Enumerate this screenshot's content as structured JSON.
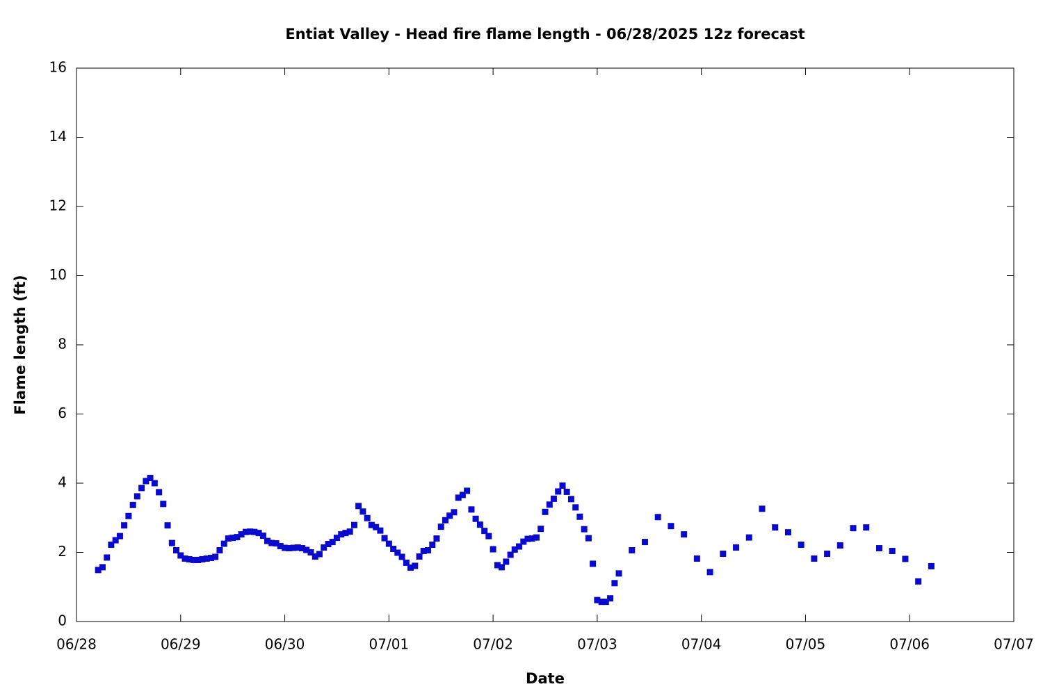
{
  "chart_data": {
    "type": "scatter",
    "title": "Entiat Valley - Head fire flame length - 06/28/2025 12z forecast",
    "xlabel": "Date",
    "ylabel": "Flame length (ft)",
    "xlim": [
      0,
      9
    ],
    "ylim": [
      0,
      16
    ],
    "xticks": [
      {
        "value": 0,
        "label": "06/28"
      },
      {
        "value": 1,
        "label": "06/29"
      },
      {
        "value": 2,
        "label": "06/30"
      },
      {
        "value": 3,
        "label": "07/01"
      },
      {
        "value": 4,
        "label": "07/02"
      },
      {
        "value": 5,
        "label": "07/03"
      },
      {
        "value": 6,
        "label": "07/04"
      },
      {
        "value": 7,
        "label": "07/05"
      },
      {
        "value": 8,
        "label": "07/06"
      },
      {
        "value": 9,
        "label": "07/07"
      }
    ],
    "yticks": [
      0,
      2,
      4,
      6,
      8,
      10,
      12,
      14,
      16
    ],
    "color": "#0a0acc",
    "x": [
      0.208,
      0.25,
      0.292,
      0.333,
      0.375,
      0.417,
      0.458,
      0.5,
      0.542,
      0.583,
      0.625,
      0.667,
      0.708,
      0.75,
      0.792,
      0.833,
      0.875,
      0.917,
      0.958,
      1,
      1.042,
      1.083,
      1.125,
      1.167,
      1.208,
      1.25,
      1.292,
      1.333,
      1.375,
      1.417,
      1.458,
      1.5,
      1.542,
      1.583,
      1.625,
      1.667,
      1.708,
      1.75,
      1.792,
      1.833,
      1.875,
      1.917,
      1.958,
      2,
      2.042,
      2.083,
      2.125,
      2.167,
      2.208,
      2.25,
      2.292,
      2.333,
      2.375,
      2.417,
      2.458,
      2.5,
      2.542,
      2.583,
      2.625,
      2.667,
      2.708,
      2.75,
      2.792,
      2.833,
      2.875,
      2.917,
      2.958,
      3,
      3.042,
      3.083,
      3.125,
      3.167,
      3.208,
      3.25,
      3.292,
      3.333,
      3.375,
      3.417,
      3.458,
      3.5,
      3.542,
      3.583,
      3.625,
      3.667,
      3.708,
      3.75,
      3.792,
      3.833,
      3.875,
      3.917,
      3.958,
      4,
      4.042,
      4.083,
      4.125,
      4.167,
      4.208,
      4.25,
      4.292,
      4.333,
      4.375,
      4.417,
      4.458,
      4.5,
      4.542,
      4.583,
      4.625,
      4.667,
      4.708,
      4.75,
      4.792,
      4.833,
      4.875,
      4.917,
      4.958,
      5,
      5.042,
      5.083,
      5.125,
      5.167,
      5.208,
      5.333,
      5.458,
      5.583,
      5.708,
      5.833,
      5.958,
      6.083,
      6.208,
      6.333,
      6.458,
      6.583,
      6.708,
      6.833,
      6.958,
      7.083,
      7.208,
      7.333,
      7.458,
      7.583,
      7.708,
      7.833,
      7.958,
      8.083,
      8.208
    ],
    "values": [
      1.49,
      1.57,
      1.85,
      2.22,
      2.35,
      2.47,
      2.78,
      3.05,
      3.37,
      3.62,
      3.86,
      4.06,
      4.15,
      4.0,
      3.74,
      3.4,
      2.78,
      2.27,
      2.06,
      1.91,
      1.82,
      1.8,
      1.78,
      1.78,
      1.8,
      1.82,
      1.84,
      1.87,
      2.06,
      2.25,
      2.4,
      2.42,
      2.44,
      2.52,
      2.59,
      2.6,
      2.59,
      2.56,
      2.48,
      2.33,
      2.27,
      2.26,
      2.18,
      2.13,
      2.12,
      2.13,
      2.14,
      2.12,
      2.07,
      2.0,
      1.88,
      1.95,
      2.14,
      2.24,
      2.3,
      2.42,
      2.52,
      2.56,
      2.6,
      2.79,
      3.34,
      3.18,
      2.99,
      2.79,
      2.73,
      2.63,
      2.41,
      2.25,
      2.1,
      1.99,
      1.87,
      1.7,
      1.56,
      1.61,
      1.88,
      2.04,
      2.06,
      2.22,
      2.4,
      2.74,
      2.93,
      3.06,
      3.16,
      3.58,
      3.66,
      3.78,
      3.24,
      2.97,
      2.8,
      2.62,
      2.47,
      2.09,
      1.63,
      1.57,
      1.73,
      1.93,
      2.08,
      2.17,
      2.31,
      2.39,
      2.4,
      2.43,
      2.68,
      3.17,
      3.38,
      3.55,
      3.76,
      3.93,
      3.75,
      3.54,
      3.3,
      3.03,
      2.67,
      2.41,
      1.67,
      0.62,
      0.57,
      0.57,
      0.67,
      1.11,
      1.39,
      2.06,
      2.3,
      3.02,
      2.76,
      2.52,
      1.82,
      1.43,
      1.96,
      2.14,
      2.43,
      3.26,
      2.72,
      2.58,
      2.22,
      1.82,
      1.96,
      2.2,
      2.7,
      2.72,
      2.12,
      2.04,
      1.81,
      1.16,
      1.6
    ]
  }
}
